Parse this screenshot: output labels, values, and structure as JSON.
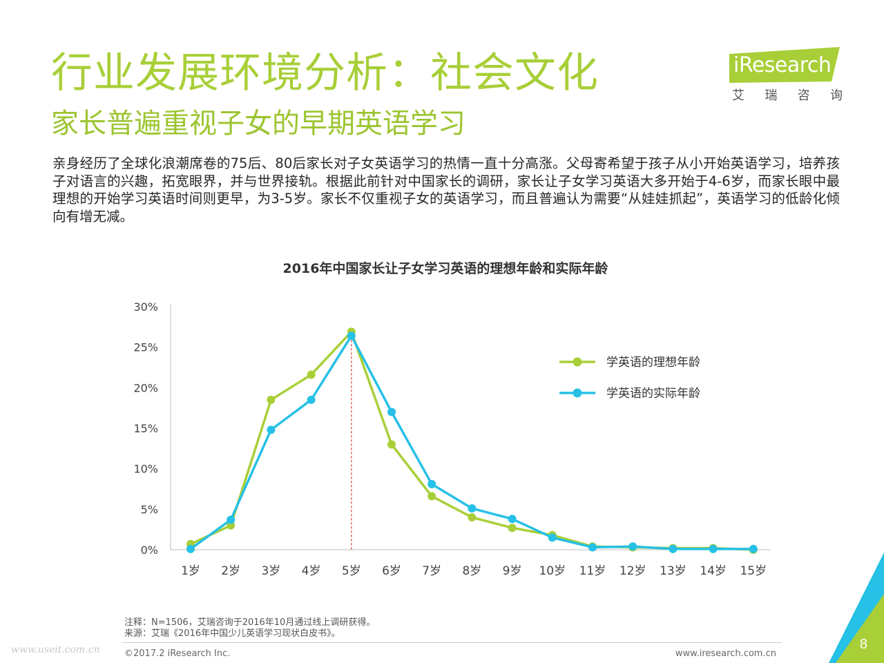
{
  "slide": {
    "title": "行业发展环境分析：社会文化",
    "subtitle": "家长普遍重视子女的早期英语学习",
    "paragraph": "亲身经历了全球化浪潮席卷的75后、80后家长对子女英语学习的热情一直十分高涨。父母寄希望于孩子从小开始英语学习，培养孩子对语言的兴趣，拓宽眼界，并与世界接轨。根据此前针对中国家长的调研，家长让子女学习英语大多开始于4-6岁，而家长眼中最理想的开始学习英语时间则更早，为3-5岁。家长不仅重视子女的英语学习，而且普遍认为需要“从娃娃抓起”，英语学习的低龄化倾向有增无减。"
  },
  "logo": {
    "brand": "iResearch",
    "cn": [
      "艾",
      "瑞",
      "咨",
      "询"
    ]
  },
  "notes": {
    "note": "注释：N=1506，艾瑞咨询于2016年10月通过线上调研获得。",
    "source": "来源：艾瑞《2016年中国少儿英语学习现状白皮书》。"
  },
  "footer": {
    "copyright": "©2017.2 iResearch Inc.",
    "website": "www.iresearch.com.cn",
    "page": "8",
    "watermark": "www.useit.com.cn"
  },
  "colors": {
    "ideal": "#a8cf38",
    "actual": "#27c0e6",
    "title": "#a8cf38",
    "reference_line": "#e05a5a"
  },
  "chart_data": {
    "type": "line",
    "title": "2016年中国家长让子女学习英语的理想年龄和实际年龄",
    "categories": [
      "1岁",
      "2岁",
      "3岁",
      "4岁",
      "5岁",
      "6岁",
      "7岁",
      "8岁",
      "9岁",
      "10岁",
      "11岁",
      "12岁",
      "13岁",
      "14岁",
      "15岁"
    ],
    "series": [
      {
        "name": "学英语的理想年龄",
        "color": "#a8cf38",
        "values": [
          0.7,
          3.0,
          18.5,
          21.6,
          26.9,
          13.0,
          6.6,
          4.0,
          2.7,
          1.8,
          0.4,
          0.3,
          0.2,
          0.2,
          0.0
        ]
      },
      {
        "name": "学英语的实际年龄",
        "color": "#27c0e6",
        "values": [
          0.1,
          3.7,
          14.8,
          18.5,
          26.4,
          17.0,
          8.1,
          5.1,
          3.8,
          1.5,
          0.3,
          0.4,
          0.1,
          0.1,
          0.1
        ]
      }
    ],
    "ylim": [
      0,
      30
    ],
    "yticks": [
      "0%",
      "5%",
      "10%",
      "15%",
      "20%",
      "25%",
      "30%"
    ],
    "reference_category": "5岁",
    "legend_position": "right",
    "grid": false
  }
}
